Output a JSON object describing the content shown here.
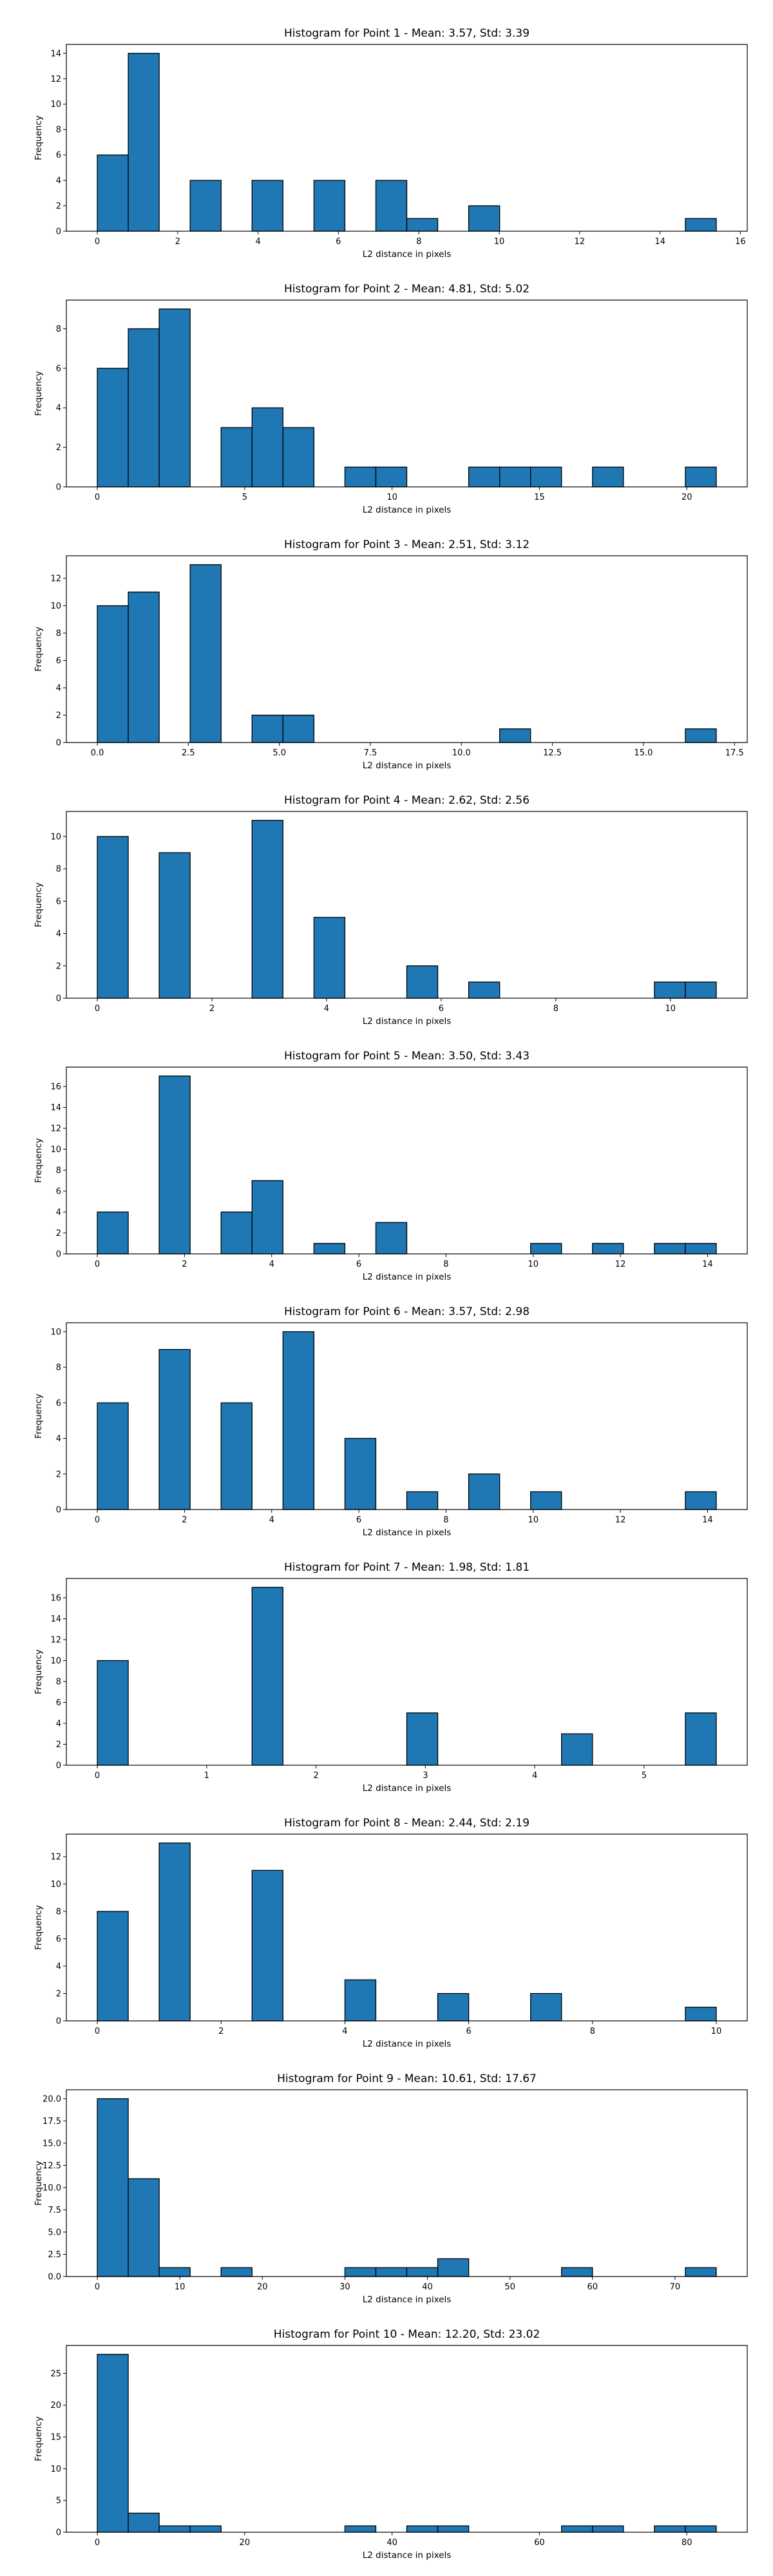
{
  "chart_data": [
    {
      "type": "bar",
      "title": "Histogram for Point 1 - Mean: 3.57, Std: 3.39",
      "xlabel": "L2 distance in pixels",
      "ylabel": "Frequency",
      "xlim": [
        -0.77,
        16.17
      ],
      "ylim": [
        0,
        14.7
      ],
      "xticks": [
        0,
        2,
        4,
        6,
        8,
        10,
        12,
        14,
        16
      ],
      "xtick_labels": [
        "0",
        "2",
        "4",
        "6",
        "8",
        "10",
        "12",
        "14",
        "16"
      ],
      "yticks": [
        0,
        2,
        4,
        6,
        8,
        10,
        12,
        14
      ],
      "ytick_labels": [
        "0",
        "2",
        "4",
        "6",
        "8",
        "10",
        "12",
        "14"
      ],
      "bin_edges": [
        0,
        0.77,
        1.54,
        2.31,
        3.08,
        3.85,
        4.62,
        5.39,
        6.16,
        6.93,
        7.7,
        8.47,
        9.24,
        10.01,
        10.78,
        11.55,
        12.32,
        13.09,
        13.86,
        14.63,
        15.4
      ],
      "counts": [
        6,
        14,
        0,
        4,
        0,
        4,
        0,
        4,
        0,
        4,
        1,
        0,
        2,
        0,
        0,
        0,
        0,
        0,
        0,
        1
      ],
      "grid": false,
      "legend": "none"
    },
    {
      "type": "bar",
      "title": "Histogram for Point 2 - Mean: 4.81, Std: 5.02",
      "xlabel": "L2 distance in pixels",
      "ylabel": "Frequency",
      "xlim": [
        -1.05,
        22.05
      ],
      "ylim": [
        0,
        9.45
      ],
      "xticks": [
        0,
        5,
        10,
        15,
        20
      ],
      "xtick_labels": [
        "0",
        "5",
        "10",
        "15",
        "20"
      ],
      "yticks": [
        0,
        2,
        4,
        6,
        8
      ],
      "ytick_labels": [
        "0",
        "2",
        "4",
        "6",
        "8"
      ],
      "bin_edges": [
        0,
        1.05,
        2.1,
        3.15,
        4.2,
        5.25,
        6.3,
        7.35,
        8.4,
        9.45,
        10.5,
        11.55,
        12.6,
        13.65,
        14.7,
        15.75,
        16.8,
        17.85,
        18.9,
        19.95,
        21.0
      ],
      "counts": [
        6,
        8,
        9,
        0,
        3,
        4,
        3,
        0,
        1,
        1,
        0,
        0,
        1,
        1,
        1,
        0,
        1,
        0,
        0,
        1
      ],
      "grid": false,
      "legend": "none"
    },
    {
      "type": "bar",
      "title": "Histogram for Point 3 - Mean: 2.51, Std: 3.12",
      "xlabel": "L2 distance in pixels",
      "ylabel": "Frequency",
      "xlim": [
        -0.85,
        17.85
      ],
      "ylim": [
        0,
        13.65
      ],
      "xticks": [
        0,
        2.5,
        5,
        7.5,
        10,
        12.5,
        15,
        17.5
      ],
      "xtick_labels": [
        "0.0",
        "2.5",
        "5.0",
        "7.5",
        "10.0",
        "12.5",
        "15.0",
        "17.5"
      ],
      "yticks": [
        0,
        2,
        4,
        6,
        8,
        10,
        12
      ],
      "ytick_labels": [
        "0",
        "2",
        "4",
        "6",
        "8",
        "10",
        "12"
      ],
      "bin_edges": [
        0,
        0.85,
        1.7,
        2.55,
        3.4,
        4.25,
        5.1,
        5.95,
        6.8,
        7.65,
        8.5,
        9.35,
        10.2,
        11.05,
        11.9,
        12.75,
        13.6,
        14.45,
        15.3,
        16.15,
        17.0
      ],
      "counts": [
        10,
        11,
        0,
        13,
        0,
        2,
        2,
        0,
        0,
        0,
        0,
        0,
        0,
        1,
        0,
        0,
        0,
        0,
        0,
        1
      ],
      "grid": false,
      "legend": "none"
    },
    {
      "type": "bar",
      "title": "Histogram for Point 4 - Mean: 2.62, Std: 2.56",
      "xlabel": "L2 distance in pixels",
      "ylabel": "Frequency",
      "xlim": [
        -0.54,
        11.34
      ],
      "ylim": [
        0,
        11.55
      ],
      "xticks": [
        0,
        2,
        4,
        6,
        8,
        10
      ],
      "xtick_labels": [
        "0",
        "2",
        "4",
        "6",
        "8",
        "10"
      ],
      "yticks": [
        0,
        2,
        4,
        6,
        8,
        10
      ],
      "ytick_labels": [
        "0",
        "2",
        "4",
        "6",
        "8",
        "10"
      ],
      "bin_edges": [
        0,
        0.54,
        1.08,
        1.62,
        2.16,
        2.7,
        3.24,
        3.78,
        4.32,
        4.86,
        5.4,
        5.94,
        6.48,
        7.02,
        7.56,
        8.1,
        8.64,
        9.18,
        9.72,
        10.26,
        10.8
      ],
      "counts": [
        10,
        0,
        9,
        0,
        0,
        11,
        0,
        5,
        0,
        0,
        2,
        0,
        1,
        0,
        0,
        0,
        0,
        0,
        1,
        1
      ],
      "grid": false,
      "legend": "none"
    },
    {
      "type": "bar",
      "title": "Histogram for Point 5 - Mean: 3.50, Std: 3.43",
      "xlabel": "L2 distance in pixels",
      "ylabel": "Frequency",
      "xlim": [
        -0.71,
        14.91
      ],
      "ylim": [
        0,
        17.85
      ],
      "xticks": [
        0,
        2,
        4,
        6,
        8,
        10,
        12,
        14
      ],
      "xtick_labels": [
        "0",
        "2",
        "4",
        "6",
        "8",
        "10",
        "12",
        "14"
      ],
      "yticks": [
        0,
        2,
        4,
        6,
        8,
        10,
        12,
        14,
        16
      ],
      "ytick_labels": [
        "0",
        "2",
        "4",
        "6",
        "8",
        "10",
        "12",
        "14",
        "16"
      ],
      "bin_edges": [
        0,
        0.71,
        1.42,
        2.13,
        2.84,
        3.55,
        4.26,
        4.97,
        5.68,
        6.39,
        7.1,
        7.81,
        8.52,
        9.23,
        9.94,
        10.65,
        11.36,
        12.07,
        12.78,
        13.49,
        14.2
      ],
      "counts": [
        4,
        0,
        17,
        0,
        4,
        7,
        0,
        1,
        0,
        3,
        0,
        0,
        0,
        0,
        1,
        0,
        1,
        0,
        1,
        1
      ],
      "grid": false,
      "legend": "none"
    },
    {
      "type": "bar",
      "title": "Histogram for Point 6 - Mean: 3.57, Std: 2.98",
      "xlabel": "L2 distance in pixels",
      "ylabel": "Frequency",
      "xlim": [
        -0.71,
        14.91
      ],
      "ylim": [
        0,
        10.5
      ],
      "xticks": [
        0,
        2,
        4,
        6,
        8,
        10,
        12,
        14
      ],
      "xtick_labels": [
        "0",
        "2",
        "4",
        "6",
        "8",
        "10",
        "12",
        "14"
      ],
      "yticks": [
        0,
        2,
        4,
        6,
        8,
        10
      ],
      "ytick_labels": [
        "0",
        "2",
        "4",
        "6",
        "8",
        "10"
      ],
      "bin_edges": [
        0,
        0.71,
        1.42,
        2.13,
        2.84,
        3.55,
        4.26,
        4.97,
        5.68,
        6.39,
        7.1,
        7.81,
        8.52,
        9.23,
        9.94,
        10.65,
        11.36,
        12.07,
        12.78,
        13.49,
        14.2
      ],
      "counts": [
        6,
        0,
        9,
        0,
        6,
        0,
        10,
        0,
        4,
        0,
        1,
        0,
        2,
        0,
        1,
        0,
        0,
        0,
        0,
        1
      ],
      "grid": false,
      "legend": "none"
    },
    {
      "type": "bar",
      "title": "Histogram for Point 7 - Mean: 1.98, Std: 1.81",
      "xlabel": "L2 distance in pixels",
      "ylabel": "Frequency",
      "xlim": [
        -0.283,
        5.943
      ],
      "ylim": [
        0,
        17.85
      ],
      "xticks": [
        0,
        1,
        2,
        3,
        4,
        5
      ],
      "xtick_labels": [
        "0",
        "1",
        "2",
        "3",
        "4",
        "5"
      ],
      "yticks": [
        0,
        2,
        4,
        6,
        8,
        10,
        12,
        14,
        16
      ],
      "ytick_labels": [
        "0",
        "2",
        "4",
        "6",
        "8",
        "10",
        "12",
        "14",
        "16"
      ],
      "bin_edges": [
        0,
        0.283,
        0.566,
        0.849,
        1.132,
        1.415,
        1.698,
        1.981,
        2.264,
        2.547,
        2.83,
        3.113,
        3.396,
        3.679,
        3.962,
        4.245,
        4.528,
        4.811,
        5.094,
        5.377,
        5.66
      ],
      "counts": [
        10,
        0,
        0,
        0,
        0,
        17,
        0,
        0,
        0,
        0,
        5,
        0,
        0,
        0,
        0,
        3,
        0,
        0,
        0,
        5
      ],
      "grid": false,
      "legend": "none"
    },
    {
      "type": "bar",
      "title": "Histogram for Point 8 - Mean: 2.44, Std: 2.19",
      "xlabel": "L2 distance in pixels",
      "ylabel": "Frequency",
      "xlim": [
        -0.5,
        10.5
      ],
      "ylim": [
        0,
        13.65
      ],
      "xticks": [
        0,
        2,
        4,
        6,
        8,
        10
      ],
      "xtick_labels": [
        "0",
        "2",
        "4",
        "6",
        "8",
        "10"
      ],
      "yticks": [
        0,
        2,
        4,
        6,
        8,
        10,
        12
      ],
      "ytick_labels": [
        "0",
        "2",
        "4",
        "6",
        "8",
        "10",
        "12"
      ],
      "bin_edges": [
        0,
        0.5,
        1.0,
        1.5,
        2.0,
        2.5,
        3.0,
        3.5,
        4.0,
        4.5,
        5.0,
        5.5,
        6.0,
        6.5,
        7.0,
        7.5,
        8.0,
        8.5,
        9.0,
        9.5,
        10.0
      ],
      "counts": [
        8,
        0,
        13,
        0,
        0,
        11,
        0,
        0,
        3,
        0,
        0,
        2,
        0,
        0,
        2,
        0,
        0,
        0,
        0,
        1
      ],
      "grid": false,
      "legend": "none"
    },
    {
      "type": "bar",
      "title": "Histogram for Point 9 - Mean: 10.61, Std: 17.67",
      "xlabel": "L2 distance in pixels",
      "ylabel": "Frequency",
      "xlim": [
        -3.75,
        78.75
      ],
      "ylim": [
        0,
        21.0
      ],
      "xticks": [
        0,
        10,
        20,
        30,
        40,
        50,
        60,
        70
      ],
      "xtick_labels": [
        "0",
        "10",
        "20",
        "30",
        "40",
        "50",
        "60",
        "70"
      ],
      "yticks": [
        0,
        2.5,
        5,
        7.5,
        10,
        12.5,
        15,
        17.5,
        20
      ],
      "ytick_labels": [
        "0.0",
        "2.5",
        "5.0",
        "7.5",
        "10.0",
        "12.5",
        "15.0",
        "17.5",
        "20.0"
      ],
      "bin_edges": [
        0,
        3.75,
        7.5,
        11.25,
        15.0,
        18.75,
        22.5,
        26.25,
        30.0,
        33.75,
        37.5,
        41.25,
        45.0,
        48.75,
        52.5,
        56.25,
        60.0,
        63.75,
        67.5,
        71.25,
        75.0
      ],
      "counts": [
        20,
        11,
        1,
        0,
        1,
        0,
        0,
        0,
        1,
        1,
        1,
        2,
        0,
        0,
        0,
        1,
        0,
        0,
        0,
        1
      ],
      "grid": false,
      "legend": "none"
    },
    {
      "type": "bar",
      "title": "Histogram for Point 10 - Mean: 12.20, Std: 23.02",
      "xlabel": "L2 distance in pixels",
      "ylabel": "Frequency",
      "xlim": [
        -4.2,
        88.2
      ],
      "ylim": [
        0,
        29.4
      ],
      "xticks": [
        0,
        20,
        40,
        60,
        80
      ],
      "xtick_labels": [
        "0",
        "20",
        "40",
        "60",
        "80"
      ],
      "yticks": [
        0,
        5,
        10,
        15,
        20,
        25
      ],
      "ytick_labels": [
        "0",
        "5",
        "10",
        "15",
        "20",
        "25"
      ],
      "bin_edges": [
        0,
        4.2,
        8.4,
        12.6,
        16.8,
        21.0,
        25.2,
        29.4,
        33.6,
        37.8,
        42.0,
        46.2,
        50.4,
        54.6,
        58.8,
        63.0,
        67.2,
        71.4,
        75.6,
        79.8,
        84.0
      ],
      "counts": [
        28,
        3,
        1,
        1,
        0,
        0,
        0,
        0,
        1,
        0,
        1,
        1,
        0,
        0,
        0,
        1,
        1,
        0,
        1,
        1
      ],
      "grid": false,
      "legend": "none"
    }
  ]
}
